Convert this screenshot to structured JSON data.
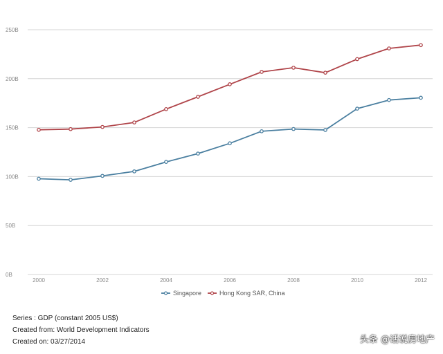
{
  "chart_data": {
    "type": "line",
    "x": [
      "2000",
      "2001",
      "2002",
      "2003",
      "2004",
      "2005",
      "2006",
      "2007",
      "2008",
      "2009",
      "2010",
      "2011",
      "2012"
    ],
    "x_tick_labels": [
      "2000",
      "2002",
      "2004",
      "2006",
      "2008",
      "2010",
      "2012"
    ],
    "y_tick_labels": [
      "0B",
      "50B",
      "100B",
      "150B",
      "200B",
      "250B"
    ],
    "ylim": [
      0,
      250
    ],
    "grid": "horizontal",
    "legend_position": "bottom",
    "series": [
      {
        "name": "Singapore",
        "color": "#4a7fa0",
        "values": [
          97.8,
          96.7,
          100.7,
          105.3,
          115.0,
          123.5,
          134.0,
          146.3,
          148.6,
          147.6,
          169.4,
          178.2,
          180.5
        ]
      },
      {
        "name": "Hong Kong SAR, China",
        "color": "#b0454a",
        "values": [
          147.8,
          148.5,
          150.7,
          155.3,
          168.9,
          181.5,
          194.3,
          206.9,
          211.2,
          206.1,
          220.0,
          230.9,
          234.3
        ]
      }
    ]
  },
  "captions": {
    "series": "Series : GDP (constant 2005 US$)",
    "source": "Created from: World Development Indicators",
    "date": "Created on: 03/27/2014"
  },
  "watermark": "头条 @话说房地产"
}
